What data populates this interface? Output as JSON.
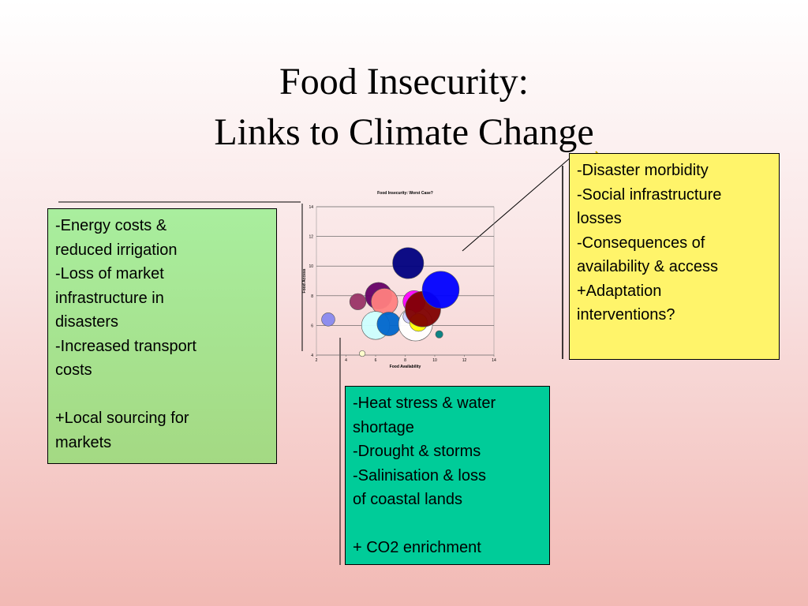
{
  "title": {
    "line1": "Food Insecurity:",
    "line2": "Links to Climate Change"
  },
  "left_box": {
    "lines": [
      "-Energy costs &",
      "reduced irrigation",
      "-Loss of market",
      "infrastructure in",
      "disasters",
      "-Increased transport",
      "costs",
      "",
      "+Local sourcing for",
      "markets"
    ]
  },
  "right_box": {
    "lines": [
      "-Disaster morbidity",
      "-Social infrastructure",
      "losses",
      "-Consequences of",
      "availability & access",
      "+Adaptation",
      "interventions?"
    ]
  },
  "bottom_box": {
    "lines": [
      "-Heat stress & water",
      "shortage",
      "-Drought & storms",
      "-Salinisation & loss",
      "of coastal lands",
      "",
      "+ CO2 enrichment"
    ]
  },
  "chart_data": {
    "type": "scatter",
    "title": "Food Insecurity: Worst Case?",
    "xlabel": "Food Availability",
    "ylabel": "Food Access",
    "xlim": [
      2,
      14
    ],
    "ylim": [
      4,
      14
    ],
    "xticks": [
      2,
      4,
      6,
      8,
      10,
      12,
      14
    ],
    "yticks": [
      4,
      6,
      8,
      10,
      12,
      14
    ],
    "grid": true,
    "points": [
      {
        "x": 2.8,
        "y": 6.4,
        "size": 0.45,
        "color": "#8888ee"
      },
      {
        "x": 4.8,
        "y": 7.6,
        "size": 0.55,
        "color": "#993366"
      },
      {
        "x": 6.2,
        "y": 8.0,
        "size": 0.9,
        "color": "#660066"
      },
      {
        "x": 6.6,
        "y": 7.6,
        "size": 0.9,
        "color": "#ff8080"
      },
      {
        "x": 6.0,
        "y": 6.0,
        "size": 0.95,
        "color": "#ccffff"
      },
      {
        "x": 6.9,
        "y": 6.1,
        "size": 0.8,
        "color": "#0066cc"
      },
      {
        "x": 8.7,
        "y": 6.1,
        "size": 1.15,
        "color": "#ffffff"
      },
      {
        "x": 8.6,
        "y": 7.6,
        "size": 0.75,
        "color": "#ff00ff"
      },
      {
        "x": 8.3,
        "y": 6.6,
        "size": 0.45,
        "color": "#ccccff"
      },
      {
        "x": 8.9,
        "y": 6.2,
        "size": 0.6,
        "color": "#ffff00"
      },
      {
        "x": 9.2,
        "y": 7.1,
        "size": 1.2,
        "color": "#800000"
      },
      {
        "x": 10.4,
        "y": 8.4,
        "size": 1.25,
        "color": "#0000ff"
      },
      {
        "x": 8.2,
        "y": 10.2,
        "size": 1.05,
        "color": "#000080"
      },
      {
        "x": 10.3,
        "y": 5.4,
        "size": 0.25,
        "color": "#008080"
      },
      {
        "x": 5.1,
        "y": 4.1,
        "size": 0.2,
        "color": "#ffffcc"
      }
    ]
  },
  "colors": {
    "left_box": "#a9ee9e",
    "right_box": "#fff46a",
    "bottom_box": "#00cc99"
  }
}
